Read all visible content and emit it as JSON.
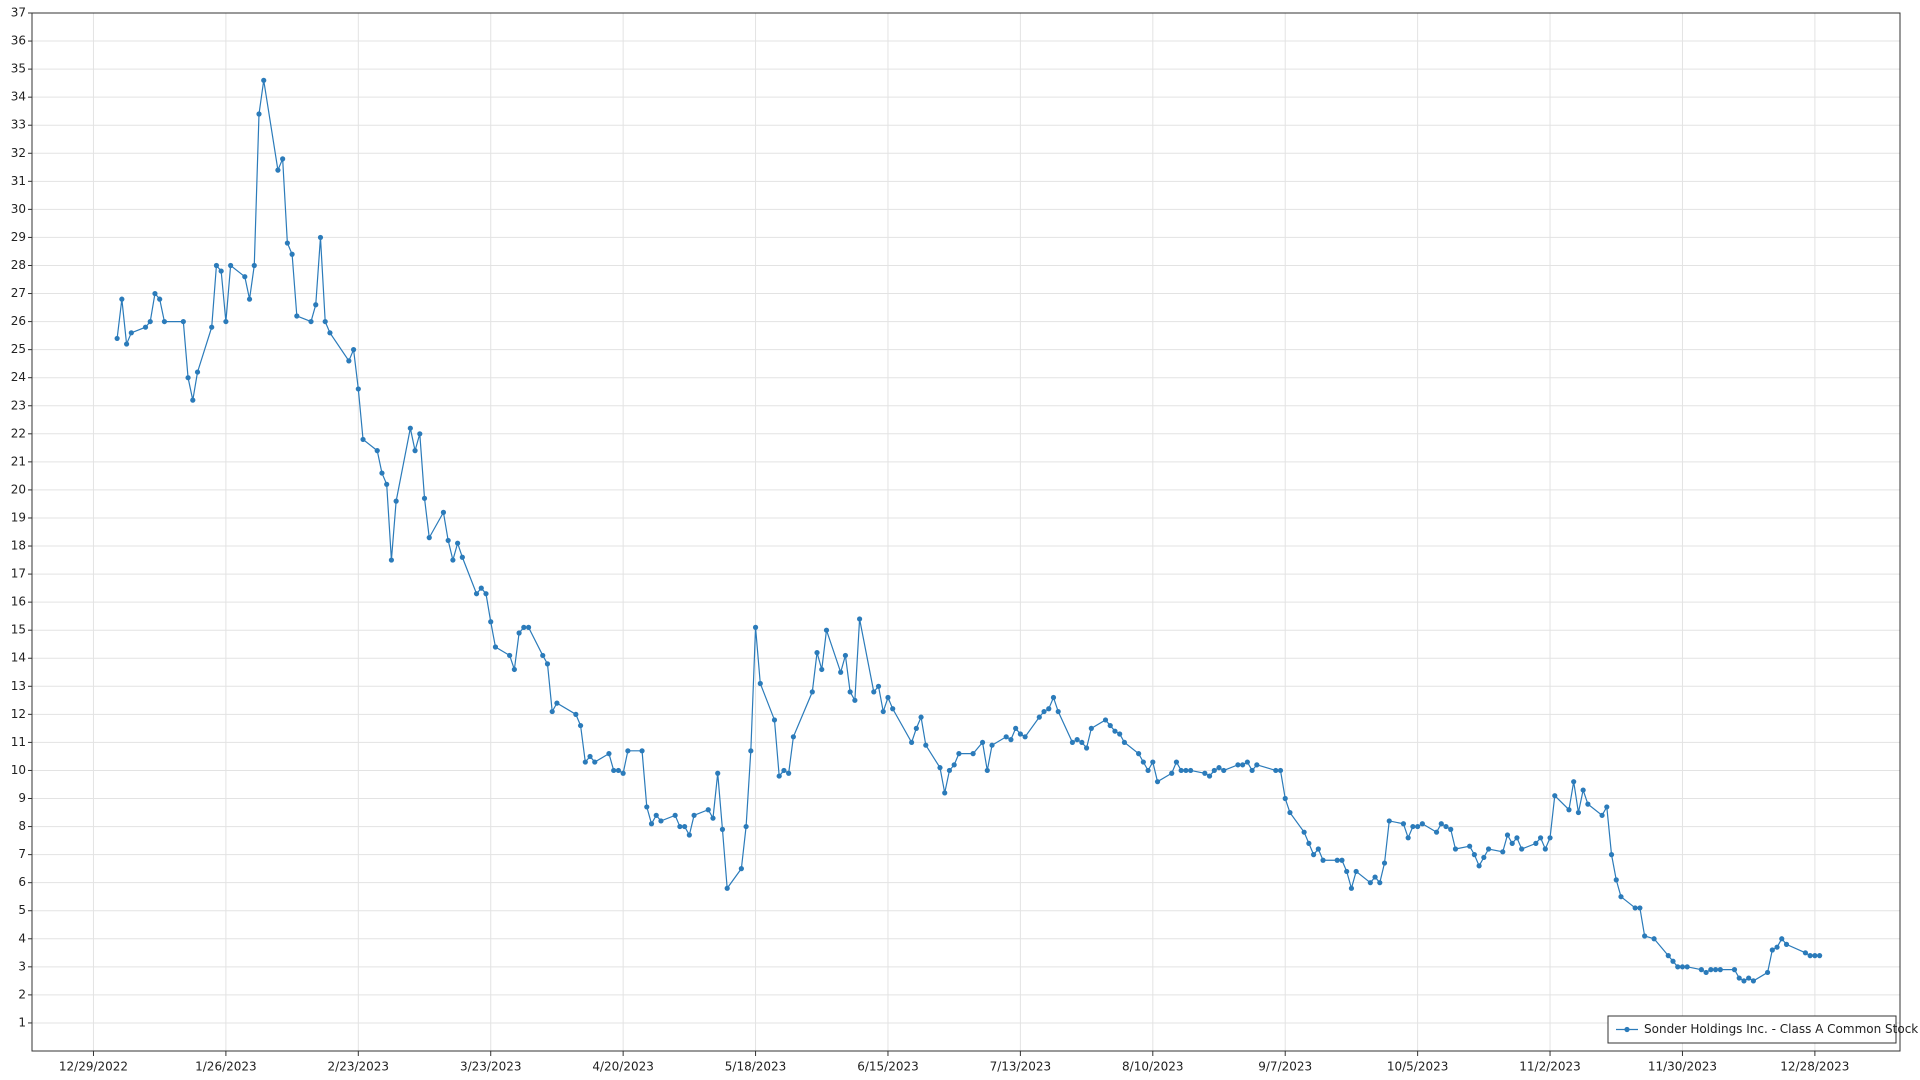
{
  "chart_data": {
    "type": "line",
    "x": [
      "1/3/2023",
      "1/4/2023",
      "1/5/2023",
      "1/6/2023",
      "1/9/2023",
      "1/10/2023",
      "1/11/2023",
      "1/12/2023",
      "1/13/2023",
      "1/17/2023",
      "1/18/2023",
      "1/19/2023",
      "1/20/2023",
      "1/23/2023",
      "1/24/2023",
      "1/25/2023",
      "1/26/2023",
      "1/27/2023",
      "1/30/2023",
      "1/31/2023",
      "2/1/2023",
      "2/2/2023",
      "2/3/2023",
      "2/6/2023",
      "2/7/2023",
      "2/8/2023",
      "2/9/2023",
      "2/10/2023",
      "2/13/2023",
      "2/14/2023",
      "2/15/2023",
      "2/16/2023",
      "2/17/2023",
      "2/21/2023",
      "2/22/2023",
      "2/23/2023",
      "2/24/2023",
      "2/27/2023",
      "2/28/2023",
      "3/1/2023",
      "3/2/2023",
      "3/3/2023",
      "3/6/2023",
      "3/7/2023",
      "3/8/2023",
      "3/9/2023",
      "3/10/2023",
      "3/13/2023",
      "3/14/2023",
      "3/15/2023",
      "3/16/2023",
      "3/17/2023",
      "3/20/2023",
      "3/21/2023",
      "3/22/2023",
      "3/23/2023",
      "3/24/2023",
      "3/27/2023",
      "3/28/2023",
      "3/29/2023",
      "3/30/2023",
      "3/31/2023",
      "4/3/2023",
      "4/4/2023",
      "4/5/2023",
      "4/6/2023",
      "4/10/2023",
      "4/11/2023",
      "4/12/2023",
      "4/13/2023",
      "4/14/2023",
      "4/17/2023",
      "4/18/2023",
      "4/19/2023",
      "4/20/2023",
      "4/21/2023",
      "4/24/2023",
      "4/25/2023",
      "4/26/2023",
      "4/27/2023",
      "4/28/2023",
      "5/1/2023",
      "5/2/2023",
      "5/3/2023",
      "5/4/2023",
      "5/5/2023",
      "5/8/2023",
      "5/9/2023",
      "5/10/2023",
      "5/11/2023",
      "5/12/2023",
      "5/15/2023",
      "5/16/2023",
      "5/17/2023",
      "5/18/2023",
      "5/19/2023",
      "5/22/2023",
      "5/23/2023",
      "5/24/2023",
      "5/25/2023",
      "5/26/2023",
      "5/30/2023",
      "5/31/2023",
      "6/1/2023",
      "6/2/2023",
      "6/5/2023",
      "6/6/2023",
      "6/7/2023",
      "6/8/2023",
      "6/9/2023",
      "6/12/2023",
      "6/13/2023",
      "6/14/2023",
      "6/15/2023",
      "6/16/2023",
      "6/20/2023",
      "6/21/2023",
      "6/22/2023",
      "6/23/2023",
      "6/26/2023",
      "6/27/2023",
      "6/28/2023",
      "6/29/2023",
      "6/30/2023",
      "7/3/2023",
      "7/5/2023",
      "7/6/2023",
      "7/7/2023",
      "7/10/2023",
      "7/11/2023",
      "7/12/2023",
      "7/13/2023",
      "7/14/2023",
      "7/17/2023",
      "7/18/2023",
      "7/19/2023",
      "7/20/2023",
      "7/21/2023",
      "7/24/2023",
      "7/25/2023",
      "7/26/2023",
      "7/27/2023",
      "7/28/2023",
      "7/31/2023",
      "8/1/2023",
      "8/2/2023",
      "8/3/2023",
      "8/4/2023",
      "8/7/2023",
      "8/8/2023",
      "8/9/2023",
      "8/10/2023",
      "8/11/2023",
      "8/14/2023",
      "8/15/2023",
      "8/16/2023",
      "8/17/2023",
      "8/18/2023",
      "8/21/2023",
      "8/22/2023",
      "8/23/2023",
      "8/24/2023",
      "8/25/2023",
      "8/28/2023",
      "8/29/2023",
      "8/30/2023",
      "8/31/2023",
      "9/1/2023",
      "9/5/2023",
      "9/6/2023",
      "9/7/2023",
      "9/8/2023",
      "9/11/2023",
      "9/12/2023",
      "9/13/2023",
      "9/14/2023",
      "9/15/2023",
      "9/18/2023",
      "9/19/2023",
      "9/20/2023",
      "9/21/2023",
      "9/22/2023",
      "9/25/2023",
      "9/26/2023",
      "9/27/2023",
      "9/28/2023",
      "9/29/2023",
      "10/2/2023",
      "10/3/2023",
      "10/4/2023",
      "10/5/2023",
      "10/6/2023",
      "10/9/2023",
      "10/10/2023",
      "10/11/2023",
      "10/12/2023",
      "10/13/2023",
      "10/16/2023",
      "10/17/2023",
      "10/18/2023",
      "10/19/2023",
      "10/20/2023",
      "10/23/2023",
      "10/24/2023",
      "10/25/2023",
      "10/26/2023",
      "10/27/2023",
      "10/30/2023",
      "10/31/2023",
      "11/1/2023",
      "11/2/2023",
      "11/3/2023",
      "11/6/2023",
      "11/7/2023",
      "11/8/2023",
      "11/9/2023",
      "11/10/2023",
      "11/13/2023",
      "11/14/2023",
      "11/15/2023",
      "11/16/2023",
      "11/17/2023",
      "11/20/2023",
      "11/21/2023",
      "11/22/2023",
      "11/24/2023",
      "11/27/2023",
      "11/28/2023",
      "11/29/2023",
      "11/30/2023",
      "12/1/2023",
      "12/4/2023",
      "12/5/2023",
      "12/6/2023",
      "12/7/2023",
      "12/8/2023",
      "12/11/2023",
      "12/12/2023",
      "12/13/2023",
      "12/14/2023",
      "12/15/2023",
      "12/18/2023",
      "12/19/2023",
      "12/20/2023",
      "12/21/2023",
      "12/22/2023",
      "12/26/2023",
      "12/27/2023",
      "12/28/2023",
      "12/29/2023"
    ],
    "series": [
      {
        "name": "Sonder Holdings Inc. - Class A Common Stock",
        "color": "#2b7bba",
        "values": [
          25.4,
          26.8,
          25.2,
          25.6,
          25.8,
          26.0,
          27.0,
          26.8,
          26.0,
          26.0,
          24.0,
          23.2,
          24.2,
          25.8,
          28.0,
          27.8,
          26.0,
          28.0,
          27.6,
          26.8,
          28.0,
          33.4,
          34.6,
          31.4,
          31.8,
          28.8,
          28.4,
          26.2,
          26.0,
          26.6,
          29.0,
          26.0,
          25.6,
          24.6,
          25.0,
          23.6,
          21.8,
          21.4,
          20.6,
          20.2,
          17.5,
          19.6,
          22.2,
          21.4,
          22.0,
          19.7,
          18.3,
          19.2,
          18.2,
          17.5,
          18.1,
          17.6,
          16.3,
          16.5,
          16.3,
          15.3,
          14.4,
          14.1,
          13.6,
          14.9,
          15.1,
          15.1,
          14.1,
          13.8,
          12.1,
          12.4,
          12.0,
          11.6,
          10.3,
          10.5,
          10.3,
          10.6,
          10.0,
          10.0,
          9.9,
          10.7,
          10.7,
          8.7,
          8.1,
          8.4,
          8.2,
          8.4,
          8.0,
          8.0,
          7.7,
          8.4,
          8.6,
          8.3,
          9.9,
          7.9,
          5.8,
          6.5,
          8.0,
          10.7,
          15.1,
          13.1,
          11.8,
          9.8,
          10.0,
          9.9,
          11.2,
          12.8,
          14.2,
          13.6,
          15.0,
          13.5,
          14.1,
          12.8,
          12.5,
          15.4,
          12.8,
          13.0,
          12.1,
          12.6,
          12.2,
          11.0,
          11.5,
          11.9,
          10.9,
          10.1,
          9.2,
          10.0,
          10.2,
          10.6,
          10.6,
          11.0,
          10.0,
          10.9,
          11.2,
          11.1,
          11.5,
          11.3,
          11.2,
          11.9,
          12.1,
          12.2,
          12.6,
          12.1,
          11.0,
          11.1,
          11.0,
          10.8,
          11.5,
          11.8,
          11.6,
          11.4,
          11.3,
          11.0,
          10.6,
          10.3,
          10.0,
          10.3,
          9.6,
          9.9,
          10.3,
          10.0,
          10.0,
          10.0,
          9.9,
          9.8,
          10.0,
          10.1,
          10.0,
          10.2,
          10.2,
          10.3,
          10.0,
          10.2,
          10.0,
          10.0,
          9.0,
          8.5,
          7.8,
          7.4,
          7.0,
          7.2,
          6.8,
          6.8,
          6.8,
          6.4,
          5.8,
          6.4,
          6.0,
          6.2,
          6.0,
          6.7,
          8.2,
          8.1,
          7.6,
          8.0,
          8.0,
          8.1,
          7.8,
          8.1,
          8.0,
          7.9,
          7.2,
          7.3,
          7.0,
          6.6,
          6.9,
          7.2,
          7.1,
          7.7,
          7.4,
          7.6,
          7.2,
          7.4,
          7.6,
          7.2,
          7.6,
          9.1,
          8.6,
          9.6,
          8.5,
          9.3,
          8.8,
          8.4,
          8.7,
          7.0,
          6.1,
          5.5,
          5.1,
          5.1,
          4.1,
          4.0,
          3.4,
          3.2,
          3.0,
          3.0,
          3.0,
          2.9,
          2.8,
          2.9,
          2.9,
          2.9,
          2.9,
          2.6,
          2.5,
          2.6,
          2.5,
          2.8,
          3.6,
          3.7,
          4.0,
          3.8,
          3.5,
          3.4,
          3.4,
          3.4
        ]
      }
    ],
    "xlim": [
      "12/16/2022",
      "1/15/2024"
    ],
    "xticks": [
      "12/29/2022",
      "1/26/2023",
      "2/23/2023",
      "3/23/2023",
      "4/20/2023",
      "5/18/2023",
      "6/15/2023",
      "7/13/2023",
      "8/10/2023",
      "9/7/2023",
      "10/5/2023",
      "11/2/2023",
      "11/30/2023",
      "12/28/2023"
    ],
    "ylim": [
      0,
      37
    ],
    "yticks": [
      1,
      2,
      3,
      4,
      5,
      6,
      7,
      8,
      9,
      10,
      11,
      12,
      13,
      14,
      15,
      16,
      17,
      18,
      19,
      20,
      21,
      22,
      23,
      24,
      25,
      26,
      27,
      28,
      29,
      30,
      31,
      32,
      33,
      34,
      35,
      36,
      37
    ],
    "grid": true,
    "legend": "lower right"
  }
}
